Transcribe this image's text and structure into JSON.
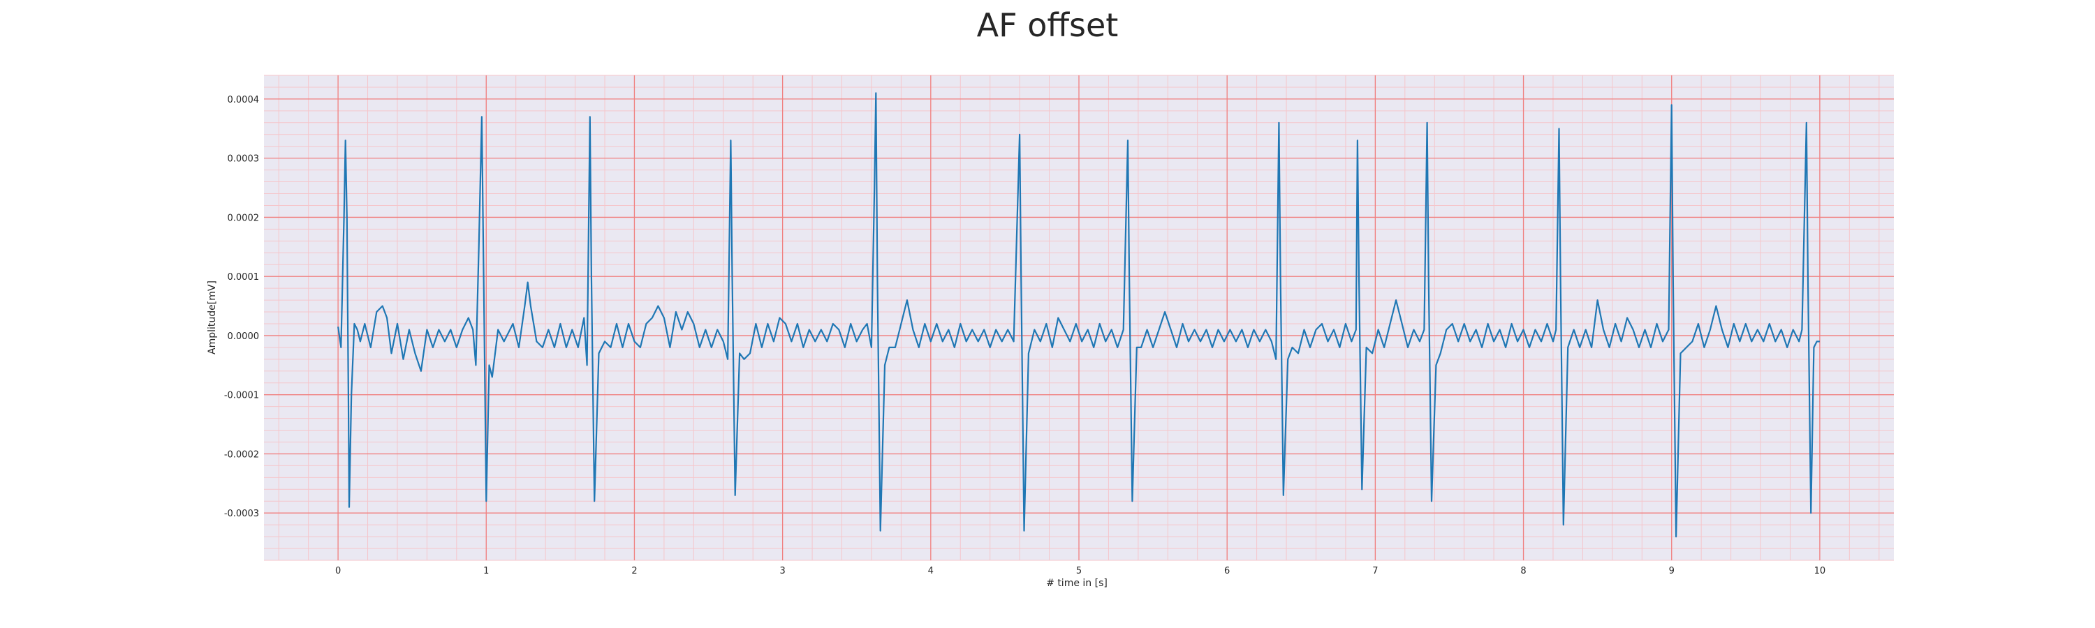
{
  "chart_data": {
    "type": "line",
    "title": "AF offset",
    "xlabel": "# time in [s]",
    "ylabel": "Amplitude[mV]",
    "xlim": [
      -0.5,
      10.5
    ],
    "ylim": [
      -0.00038,
      0.00044
    ],
    "x_ticks": [
      0,
      1,
      2,
      3,
      4,
      5,
      6,
      7,
      8,
      9,
      10
    ],
    "y_ticks": [
      -0.0003,
      -0.0002,
      -0.0001,
      0.0,
      0.0001,
      0.0002,
      0.0003,
      0.0004
    ],
    "x_tick_labels": [
      "0",
      "1",
      "2",
      "3",
      "4",
      "5",
      "6",
      "7",
      "8",
      "9",
      "10"
    ],
    "y_tick_labels": [
      "-0.0003",
      "-0.0002",
      "-0.0001",
      "0.0000",
      "0.0001",
      "0.0002",
      "0.0003",
      "0.0004"
    ],
    "grid": true,
    "legend": "none",
    "colors": {
      "line": "#1f77b4",
      "plot_background": "#eae8f2",
      "major_grid": "#f08080",
      "minor_grid": "#f5c6cb"
    },
    "series": [
      {
        "values": [
          [
            0.0,
            1.5e-05
          ],
          [
            0.02,
            -2e-05
          ],
          [
            0.04,
            0.0002
          ],
          [
            0.05,
            0.00033
          ],
          [
            0.06,
            0.0002
          ],
          [
            0.07,
            -0.0001
          ],
          [
            0.075,
            -0.00029
          ],
          [
            0.09,
            -0.0001
          ],
          [
            0.11,
            2e-05
          ],
          [
            0.13,
            1e-05
          ],
          [
            0.15,
            -1e-05
          ],
          [
            0.18,
            2e-05
          ],
          [
            0.22,
            -2e-05
          ],
          [
            0.26,
            4e-05
          ],
          [
            0.3,
            5e-05
          ],
          [
            0.33,
            3e-05
          ],
          [
            0.36,
            -3e-05
          ],
          [
            0.4,
            2e-05
          ],
          [
            0.44,
            -4e-05
          ],
          [
            0.48,
            1e-05
          ],
          [
            0.52,
            -3e-05
          ],
          [
            0.56,
            -6e-05
          ],
          [
            0.6,
            1e-05
          ],
          [
            0.64,
            -2e-05
          ],
          [
            0.68,
            1e-05
          ],
          [
            0.72,
            -1e-05
          ],
          [
            0.76,
            1e-05
          ],
          [
            0.8,
            -2e-05
          ],
          [
            0.84,
            1e-05
          ],
          [
            0.88,
            3e-05
          ],
          [
            0.91,
            1e-05
          ],
          [
            0.93,
            -5e-05
          ],
          [
            0.95,
            0.00015
          ],
          [
            0.97,
            0.00037
          ],
          [
            0.985,
            5e-05
          ],
          [
            1.0,
            -0.00028
          ],
          [
            1.02,
            -5e-05
          ],
          [
            1.04,
            -7e-05
          ],
          [
            1.08,
            1e-05
          ],
          [
            1.12,
            -1e-05
          ],
          [
            1.18,
            2e-05
          ],
          [
            1.22,
            -2e-05
          ],
          [
            1.26,
            5e-05
          ],
          [
            1.28,
            9e-05
          ],
          [
            1.3,
            5e-05
          ],
          [
            1.34,
            -1e-05
          ],
          [
            1.38,
            -2e-05
          ],
          [
            1.42,
            1e-05
          ],
          [
            1.46,
            -2e-05
          ],
          [
            1.5,
            2e-05
          ],
          [
            1.54,
            -2e-05
          ],
          [
            1.58,
            1e-05
          ],
          [
            1.62,
            -2e-05
          ],
          [
            1.66,
            3e-05
          ],
          [
            1.68,
            -5e-05
          ],
          [
            1.7,
            0.00037
          ],
          [
            1.71,
            0.0001
          ],
          [
            1.73,
            -0.00028
          ],
          [
            1.76,
            -3e-05
          ],
          [
            1.8,
            -1e-05
          ],
          [
            1.84,
            -2e-05
          ],
          [
            1.88,
            2e-05
          ],
          [
            1.92,
            -2e-05
          ],
          [
            1.96,
            2e-05
          ],
          [
            2.0,
            -1e-05
          ],
          [
            2.04,
            -2e-05
          ],
          [
            2.08,
            2e-05
          ],
          [
            2.12,
            3e-05
          ],
          [
            2.16,
            5e-05
          ],
          [
            2.2,
            3e-05
          ],
          [
            2.24,
            -2e-05
          ],
          [
            2.28,
            4e-05
          ],
          [
            2.32,
            1e-05
          ],
          [
            2.36,
            4e-05
          ],
          [
            2.4,
            2e-05
          ],
          [
            2.44,
            -2e-05
          ],
          [
            2.48,
            1e-05
          ],
          [
            2.52,
            -2e-05
          ],
          [
            2.56,
            1e-05
          ],
          [
            2.6,
            -1e-05
          ],
          [
            2.63,
            -4e-05
          ],
          [
            2.65,
            0.00033
          ],
          [
            2.66,
            0.0001
          ],
          [
            2.68,
            -0.00027
          ],
          [
            2.71,
            -3e-05
          ],
          [
            2.74,
            -4e-05
          ],
          [
            2.78,
            -3e-05
          ],
          [
            2.82,
            2e-05
          ],
          [
            2.86,
            -2e-05
          ],
          [
            2.9,
            2e-05
          ],
          [
            2.94,
            -1e-05
          ],
          [
            2.98,
            3e-05
          ],
          [
            3.02,
            2e-05
          ],
          [
            3.06,
            -1e-05
          ],
          [
            3.1,
            2e-05
          ],
          [
            3.14,
            -2e-05
          ],
          [
            3.18,
            1e-05
          ],
          [
            3.22,
            -1e-05
          ],
          [
            3.26,
            1e-05
          ],
          [
            3.3,
            -1e-05
          ],
          [
            3.34,
            2e-05
          ],
          [
            3.38,
            1e-05
          ],
          [
            3.42,
            -2e-05
          ],
          [
            3.46,
            2e-05
          ],
          [
            3.5,
            -1e-05
          ],
          [
            3.54,
            1e-05
          ],
          [
            3.57,
            2e-05
          ],
          [
            3.6,
            -2e-05
          ],
          [
            3.62,
            0.00025
          ],
          [
            3.63,
            0.00041
          ],
          [
            3.64,
            0.0001
          ],
          [
            3.66,
            -0.00033
          ],
          [
            3.69,
            -5e-05
          ],
          [
            3.72,
            -2e-05
          ],
          [
            3.76,
            -2e-05
          ],
          [
            3.8,
            2e-05
          ],
          [
            3.84,
            6e-05
          ],
          [
            3.88,
            1e-05
          ],
          [
            3.92,
            -2e-05
          ],
          [
            3.96,
            2e-05
          ],
          [
            4.0,
            -1e-05
          ],
          [
            4.04,
            2e-05
          ],
          [
            4.08,
            -1e-05
          ],
          [
            4.12,
            1e-05
          ],
          [
            4.16,
            -2e-05
          ],
          [
            4.2,
            2e-05
          ],
          [
            4.24,
            -1e-05
          ],
          [
            4.28,
            1e-05
          ],
          [
            4.32,
            -1e-05
          ],
          [
            4.36,
            1e-05
          ],
          [
            4.4,
            -2e-05
          ],
          [
            4.44,
            1e-05
          ],
          [
            4.48,
            -1e-05
          ],
          [
            4.52,
            1e-05
          ],
          [
            4.56,
            -1e-05
          ],
          [
            4.6,
            0.00034
          ],
          [
            4.61,
            0.0001
          ],
          [
            4.63,
            -0.00033
          ],
          [
            4.66,
            -3e-05
          ],
          [
            4.7,
            1e-05
          ],
          [
            4.74,
            -1e-05
          ],
          [
            4.78,
            2e-05
          ],
          [
            4.82,
            -2e-05
          ],
          [
            4.86,
            3e-05
          ],
          [
            4.9,
            1e-05
          ],
          [
            4.94,
            -1e-05
          ],
          [
            4.98,
            2e-05
          ],
          [
            5.02,
            -1e-05
          ],
          [
            5.06,
            1e-05
          ],
          [
            5.1,
            -2e-05
          ],
          [
            5.14,
            2e-05
          ],
          [
            5.18,
            -1e-05
          ],
          [
            5.22,
            1e-05
          ],
          [
            5.26,
            -2e-05
          ],
          [
            5.3,
            1e-05
          ],
          [
            5.33,
            0.00033
          ],
          [
            5.34,
            0.0001
          ],
          [
            5.36,
            -0.00028
          ],
          [
            5.39,
            -2e-05
          ],
          [
            5.42,
            -2e-05
          ],
          [
            5.46,
            1e-05
          ],
          [
            5.5,
            -2e-05
          ],
          [
            5.54,
            1e-05
          ],
          [
            5.58,
            4e-05
          ],
          [
            5.62,
            1e-05
          ],
          [
            5.66,
            -2e-05
          ],
          [
            5.7,
            2e-05
          ],
          [
            5.74,
            -1e-05
          ],
          [
            5.78,
            1e-05
          ],
          [
            5.82,
            -1e-05
          ],
          [
            5.86,
            1e-05
          ],
          [
            5.9,
            -2e-05
          ],
          [
            5.94,
            1e-05
          ],
          [
            5.98,
            -1e-05
          ],
          [
            6.02,
            1e-05
          ],
          [
            6.06,
            -1e-05
          ],
          [
            6.1,
            1e-05
          ],
          [
            6.14,
            -2e-05
          ],
          [
            6.18,
            1e-05
          ],
          [
            6.22,
            -1e-05
          ],
          [
            6.26,
            1e-05
          ],
          [
            6.3,
            -1e-05
          ],
          [
            6.33,
            -4e-05
          ],
          [
            6.35,
            0.00036
          ],
          [
            6.36,
            0.0001
          ],
          [
            6.38,
            -0.00027
          ],
          [
            6.41,
            -4e-05
          ],
          [
            6.44,
            -2e-05
          ],
          [
            6.48,
            -3e-05
          ],
          [
            6.52,
            1e-05
          ],
          [
            6.56,
            -2e-05
          ],
          [
            6.6,
            1e-05
          ],
          [
            6.64,
            2e-05
          ],
          [
            6.68,
            -1e-05
          ],
          [
            6.72,
            1e-05
          ],
          [
            6.76,
            -2e-05
          ],
          [
            6.8,
            2e-05
          ],
          [
            6.84,
            -1e-05
          ],
          [
            6.87,
            1e-05
          ],
          [
            6.88,
            0.00033
          ],
          [
            6.89,
            0.0001
          ],
          [
            6.91,
            -0.00026
          ],
          [
            6.94,
            -2e-05
          ],
          [
            6.98,
            -3e-05
          ],
          [
            7.02,
            1e-05
          ],
          [
            7.06,
            -2e-05
          ],
          [
            7.1,
            2e-05
          ],
          [
            7.14,
            6e-05
          ],
          [
            7.18,
            2e-05
          ],
          [
            7.22,
            -2e-05
          ],
          [
            7.26,
            1e-05
          ],
          [
            7.3,
            -1e-05
          ],
          [
            7.33,
            1e-05
          ],
          [
            7.35,
            0.00036
          ],
          [
            7.36,
            0.0001
          ],
          [
            7.38,
            -0.00028
          ],
          [
            7.41,
            -5e-05
          ],
          [
            7.44,
            -3e-05
          ],
          [
            7.48,
            1e-05
          ],
          [
            7.52,
            2e-05
          ],
          [
            7.56,
            -1e-05
          ],
          [
            7.6,
            2e-05
          ],
          [
            7.64,
            -1e-05
          ],
          [
            7.68,
            1e-05
          ],
          [
            7.72,
            -2e-05
          ],
          [
            7.76,
            2e-05
          ],
          [
            7.8,
            -1e-05
          ],
          [
            7.84,
            1e-05
          ],
          [
            7.88,
            -2e-05
          ],
          [
            7.92,
            2e-05
          ],
          [
            7.96,
            -1e-05
          ],
          [
            8.0,
            1e-05
          ],
          [
            8.04,
            -2e-05
          ],
          [
            8.08,
            1e-05
          ],
          [
            8.12,
            -1e-05
          ],
          [
            8.16,
            2e-05
          ],
          [
            8.2,
            -1e-05
          ],
          [
            8.22,
            1e-05
          ],
          [
            8.24,
            0.00035
          ],
          [
            8.25,
            0.0001
          ],
          [
            8.27,
            -0.00032
          ],
          [
            8.3,
            -2e-05
          ],
          [
            8.34,
            1e-05
          ],
          [
            8.38,
            -2e-05
          ],
          [
            8.42,
            1e-05
          ],
          [
            8.46,
            -2e-05
          ],
          [
            8.5,
            6e-05
          ],
          [
            8.54,
            1e-05
          ],
          [
            8.58,
            -2e-05
          ],
          [
            8.62,
            2e-05
          ],
          [
            8.66,
            -1e-05
          ],
          [
            8.7,
            3e-05
          ],
          [
            8.74,
            1e-05
          ],
          [
            8.78,
            -2e-05
          ],
          [
            8.82,
            1e-05
          ],
          [
            8.86,
            -2e-05
          ],
          [
            8.9,
            2e-05
          ],
          [
            8.94,
            -1e-05
          ],
          [
            8.98,
            1e-05
          ],
          [
            9.0,
            0.00039
          ],
          [
            9.01,
            0.0001
          ],
          [
            9.03,
            -0.00034
          ],
          [
            9.06,
            -3e-05
          ],
          [
            9.1,
            -2e-05
          ],
          [
            9.14,
            -1e-05
          ],
          [
            9.18,
            2e-05
          ],
          [
            9.22,
            -2e-05
          ],
          [
            9.26,
            1e-05
          ],
          [
            9.3,
            5e-05
          ],
          [
            9.34,
            1e-05
          ],
          [
            9.38,
            -2e-05
          ],
          [
            9.42,
            2e-05
          ],
          [
            9.46,
            -1e-05
          ],
          [
            9.5,
            2e-05
          ],
          [
            9.54,
            -1e-05
          ],
          [
            9.58,
            1e-05
          ],
          [
            9.62,
            -1e-05
          ],
          [
            9.66,
            2e-05
          ],
          [
            9.7,
            -1e-05
          ],
          [
            9.74,
            1e-05
          ],
          [
            9.78,
            -2e-05
          ],
          [
            9.82,
            1e-05
          ],
          [
            9.86,
            -1e-05
          ],
          [
            9.88,
            1e-05
          ],
          [
            9.91,
            0.00036
          ],
          [
            9.92,
            0.0001
          ],
          [
            9.94,
            -0.0003
          ],
          [
            9.96,
            -2e-05
          ],
          [
            9.98,
            -1e-05
          ],
          [
            10.0,
            -1e-05
          ]
        ]
      }
    ]
  }
}
